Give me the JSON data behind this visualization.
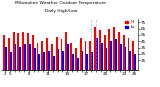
{
  "title1": "Milwaukee Weather Outdoor Temperature",
  "title2": "Daily High/Low",
  "highs": [
    55,
    50,
    60,
    58,
    60,
    58,
    55,
    42,
    45,
    50,
    40,
    52,
    48,
    60,
    42,
    35,
    50,
    45,
    45,
    68,
    62,
    55,
    65,
    68,
    60,
    55,
    50,
    45
  ],
  "lows": [
    36,
    28,
    40,
    36,
    40,
    40,
    35,
    25,
    28,
    30,
    22,
    32,
    30,
    40,
    25,
    18,
    30,
    25,
    28,
    50,
    42,
    35,
    46,
    48,
    40,
    36,
    30,
    25
  ],
  "high_color": "#ff0000",
  "low_color": "#0000ff",
  "background": "#ffffff",
  "ylim": [
    0,
    80
  ],
  "yticks": [
    15,
    25,
    35,
    45,
    55,
    65,
    75
  ],
  "xtick_labels": [
    "2",
    "5",
    "",
    "",
    "",
    "8",
    "",
    "",
    "",
    "11",
    "",
    "",
    "",
    "14",
    "",
    "",
    "",
    "17",
    "",
    "",
    "",
    "20",
    "",
    "",
    "",
    "23",
    "",
    "26"
  ],
  "legend_high": "Hi",
  "legend_low": "Lo",
  "dashed_lines": [
    18,
    19
  ]
}
